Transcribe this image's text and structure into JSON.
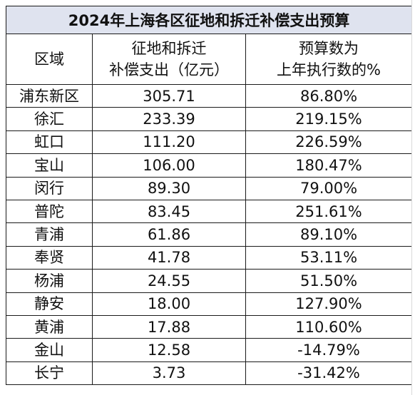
{
  "table": {
    "title": "2024年上海各区征地和拆迁补偿支出预算",
    "headers": {
      "district": "区域",
      "amount_line1": "征地和拆迁",
      "amount_line2": "补偿支出（亿元）",
      "ratio_line1": "预算数为",
      "ratio_line2": "上年执行数的%"
    },
    "rows": [
      {
        "district": "浦东新区",
        "amount": "305.71",
        "ratio": "86.80%"
      },
      {
        "district": "徐汇",
        "amount": "233.39",
        "ratio": "219.15%"
      },
      {
        "district": "虹口",
        "amount": "111.20",
        "ratio": "226.59%"
      },
      {
        "district": "宝山",
        "amount": "106.00",
        "ratio": "180.47%"
      },
      {
        "district": "闵行",
        "amount": "89.30",
        "ratio": "79.00%"
      },
      {
        "district": "普陀",
        "amount": "83.45",
        "ratio": "251.61%"
      },
      {
        "district": "青浦",
        "amount": "61.86",
        "ratio": "89.10%"
      },
      {
        "district": "奉贤",
        "amount": "41.78",
        "ratio": "53.11%"
      },
      {
        "district": "杨浦",
        "amount": "24.55",
        "ratio": "51.50%"
      },
      {
        "district": "静安",
        "amount": "18.00",
        "ratio": "127.90%"
      },
      {
        "district": "黄浦",
        "amount": "17.88",
        "ratio": "110.60%"
      },
      {
        "district": "金山",
        "amount": "12.58",
        "ratio": "-14.79%"
      },
      {
        "district": "长宁",
        "amount": "3.73",
        "ratio": "-31.42%"
      }
    ]
  },
  "colors": {
    "title_background": "#dfe3ef",
    "border": "#1a1a1a",
    "text": "#111111"
  }
}
